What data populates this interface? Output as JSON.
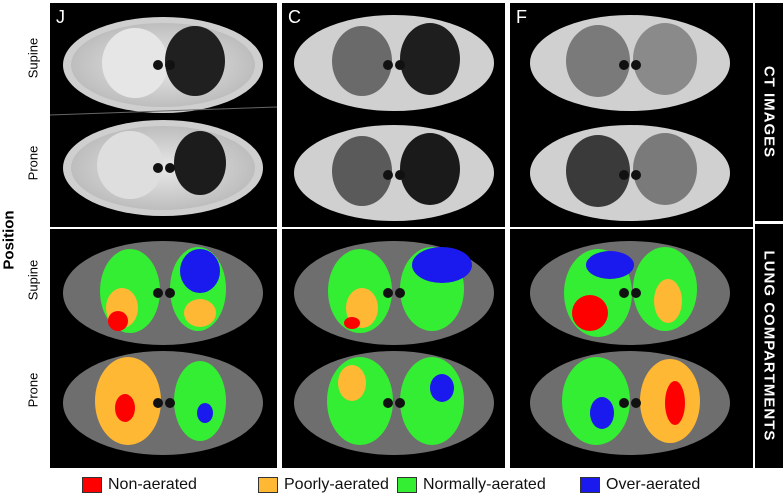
{
  "panels": [
    {
      "label": "J"
    },
    {
      "label": "C"
    },
    {
      "label": "F"
    }
  ],
  "rows": {
    "supine": "Supine",
    "prone": "Prone",
    "position": "Position"
  },
  "side": {
    "top": "CT IMAGES",
    "bottom": "LUNG COMPARTMENTS"
  },
  "legend": [
    {
      "label": "Non-aerated",
      "color": "#ff0000"
    },
    {
      "label": "Poorly-aerated",
      "color": "#ffb833"
    },
    {
      "label": "Normally-aerated",
      "color": "#33ee33"
    },
    {
      "label": "Over-aerated",
      "color": "#1a1aee"
    }
  ]
}
